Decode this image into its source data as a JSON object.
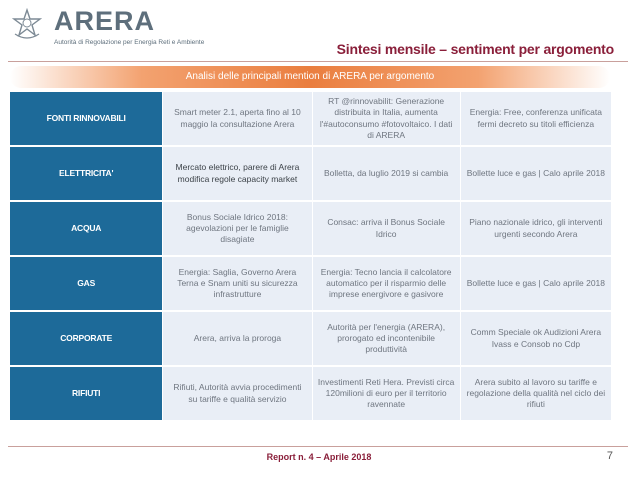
{
  "header": {
    "logo_name": "ARERA",
    "logo_subtitle": "Autorità di Regolazione per Energia Reti e Ambiente",
    "page_title": "Sintesi mensile – sentiment per argomento"
  },
  "banner": {
    "text": "Analisi delle principali mention di ARERA per argomento"
  },
  "rows": [
    {
      "category": "FONTI RINNOVABILI",
      "c1": "Smart meter 2.1, aperta fino al 10 maggio la consultazione Arera",
      "c2": "RT @rinnovabilit: Generazione distribuita in Italia, aumenta l'#autoconsumo #fotovoltaico. I dati di ARERA",
      "c3": "Energia: Free, conferenza unificata fermi decreto su titoli efficienza"
    },
    {
      "category": "ELETTRICITA'",
      "c1": "Mercato elettrico, parere di Arera modifica regole capacity market",
      "c2": "Bolletta, da luglio 2019 si cambia",
      "c3": "Bollette luce e gas | Calo aprile 2018"
    },
    {
      "category": "ACQUA",
      "c1": "Bonus Sociale Idrico 2018: agevolazioni per le famiglie disagiate",
      "c2": "Consac: arriva il Bonus Sociale Idrico",
      "c3": "Piano nazionale idrico, gli interventi urgenti secondo Arera"
    },
    {
      "category": "GAS",
      "c1": "Energia: Saglia, Governo Arera Terna e Snam uniti su sicurezza infrastrutture",
      "c2": "Energia: Tecno lancia il calcolatore automatico per il risparmio delle imprese energivore e gasivore",
      "c3": "Bollette luce e gas | Calo aprile 2018"
    },
    {
      "category": "CORPORATE",
      "c1": "Arera, arriva la proroga",
      "c2": "Autorità per l'energia (ARERA), prorogato ed incontenibile produttività",
      "c3": "Comm Speciale ok Audizioni Arera Ivass e Consob no Cdp"
    },
    {
      "category": "RIFIUTI",
      "c1": "Rifiuti, Autorità avvia procedimenti su tariffe e qualità servizio",
      "c2": "Investimenti Reti Hera. Previsti circa 120milioni di euro per il territorio ravennate",
      "c3": "Arera subito al lavoro su tariffe e regolazione della qualità nel ciclo dei rifiuti"
    }
  ],
  "footer": {
    "report": "Report n. 4 – Aprile 2018",
    "page_number": "7"
  },
  "colors": {
    "title": "#8a1f3a",
    "category_bg": "#1d6a99",
    "cell_bg": "#e9eef6",
    "banner": "#ea7e3f"
  }
}
